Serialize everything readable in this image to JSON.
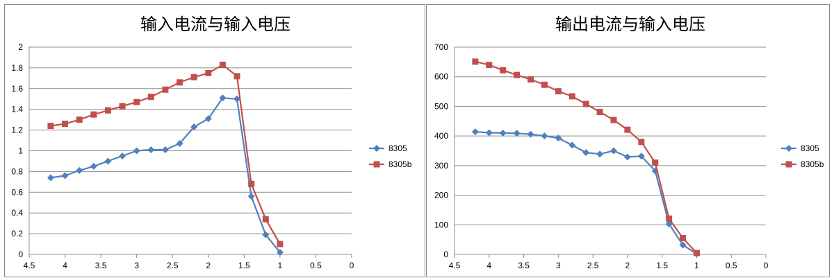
{
  "chart_data": [
    {
      "type": "scatter",
      "title": "输入电流与输入电压",
      "xlabel": "",
      "ylabel": "",
      "xlim": [
        4.5,
        0
      ],
      "x_reversed": true,
      "ylim": [
        0,
        2
      ],
      "x_ticks": [
        "4.5",
        "4",
        "3.5",
        "3",
        "2.5",
        "2",
        "1.5",
        "1",
        "0.5",
        "0"
      ],
      "y_ticks": [
        "0",
        "0.2",
        "0.4",
        "0.6",
        "0.8",
        "1",
        "1.2",
        "1.4",
        "1.6",
        "1.8",
        "2"
      ],
      "grid": "horizontal",
      "legend": "right",
      "series": [
        {
          "name": "8305",
          "color": "#4F81BD",
          "marker": "diamond",
          "points": [
            [
              4.2,
              0.74
            ],
            [
              4.0,
              0.76
            ],
            [
              3.8,
              0.81
            ],
            [
              3.6,
              0.85
            ],
            [
              3.4,
              0.9
            ],
            [
              3.2,
              0.95
            ],
            [
              3.0,
              1.0
            ],
            [
              2.8,
              1.01
            ],
            [
              2.6,
              1.01
            ],
            [
              2.4,
              1.07
            ],
            [
              2.2,
              1.23
            ],
            [
              2.0,
              1.31
            ],
            [
              1.8,
              1.51
            ],
            [
              1.6,
              1.5
            ],
            [
              1.4,
              0.56
            ],
            [
              1.2,
              0.19
            ],
            [
              1.0,
              0.02
            ]
          ]
        },
        {
          "name": "8305b",
          "color": "#C0504D",
          "marker": "square",
          "points": [
            [
              4.2,
              1.24
            ],
            [
              4.0,
              1.26
            ],
            [
              3.8,
              1.3
            ],
            [
              3.6,
              1.35
            ],
            [
              3.4,
              1.39
            ],
            [
              3.2,
              1.43
            ],
            [
              3.0,
              1.47
            ],
            [
              2.8,
              1.52
            ],
            [
              2.6,
              1.59
            ],
            [
              2.4,
              1.66
            ],
            [
              2.2,
              1.71
            ],
            [
              2.0,
              1.75
            ],
            [
              1.8,
              1.83
            ],
            [
              1.6,
              1.72
            ],
            [
              1.4,
              0.68
            ],
            [
              1.2,
              0.34
            ],
            [
              1.0,
              0.1
            ]
          ]
        }
      ]
    },
    {
      "type": "scatter",
      "title": "输出电流与输入电压",
      "xlabel": "",
      "ylabel": "",
      "xlim": [
        4.5,
        0
      ],
      "x_reversed": true,
      "ylim": [
        0,
        700
      ],
      "x_ticks": [
        "4.5",
        "4",
        "3.5",
        "3",
        "2.5",
        "2",
        "1.5",
        "1",
        "0.5",
        "0"
      ],
      "y_ticks": [
        "0",
        "100",
        "200",
        "300",
        "400",
        "500",
        "600",
        "700"
      ],
      "grid": "horizontal",
      "legend": "right",
      "series": [
        {
          "name": "8305",
          "color": "#4F81BD",
          "marker": "diamond",
          "points": [
            [
              4.2,
              414
            ],
            [
              4.0,
              411
            ],
            [
              3.8,
              410
            ],
            [
              3.6,
              409
            ],
            [
              3.4,
              406
            ],
            [
              3.2,
              400
            ],
            [
              3.0,
              393
            ],
            [
              2.8,
              369
            ],
            [
              2.6,
              344
            ],
            [
              2.4,
              339
            ],
            [
              2.2,
              350
            ],
            [
              2.0,
              329
            ],
            [
              1.8,
              332
            ],
            [
              1.6,
              282
            ],
            [
              1.4,
              103
            ],
            [
              1.2,
              32
            ],
            [
              1.0,
              2
            ]
          ]
        },
        {
          "name": "8305b",
          "color": "#C0504D",
          "marker": "square",
          "points": [
            [
              4.2,
              651
            ],
            [
              4.0,
              640
            ],
            [
              3.8,
              622
            ],
            [
              3.6,
              606
            ],
            [
              3.4,
              591
            ],
            [
              3.2,
              573
            ],
            [
              3.0,
              551
            ],
            [
              2.8,
              534
            ],
            [
              2.6,
              508
            ],
            [
              2.4,
              481
            ],
            [
              2.2,
              454
            ],
            [
              2.0,
              421
            ],
            [
              1.8,
              380
            ],
            [
              1.6,
              310
            ],
            [
              1.4,
              121
            ],
            [
              1.2,
              55
            ],
            [
              1.0,
              5
            ]
          ]
        }
      ]
    }
  ]
}
